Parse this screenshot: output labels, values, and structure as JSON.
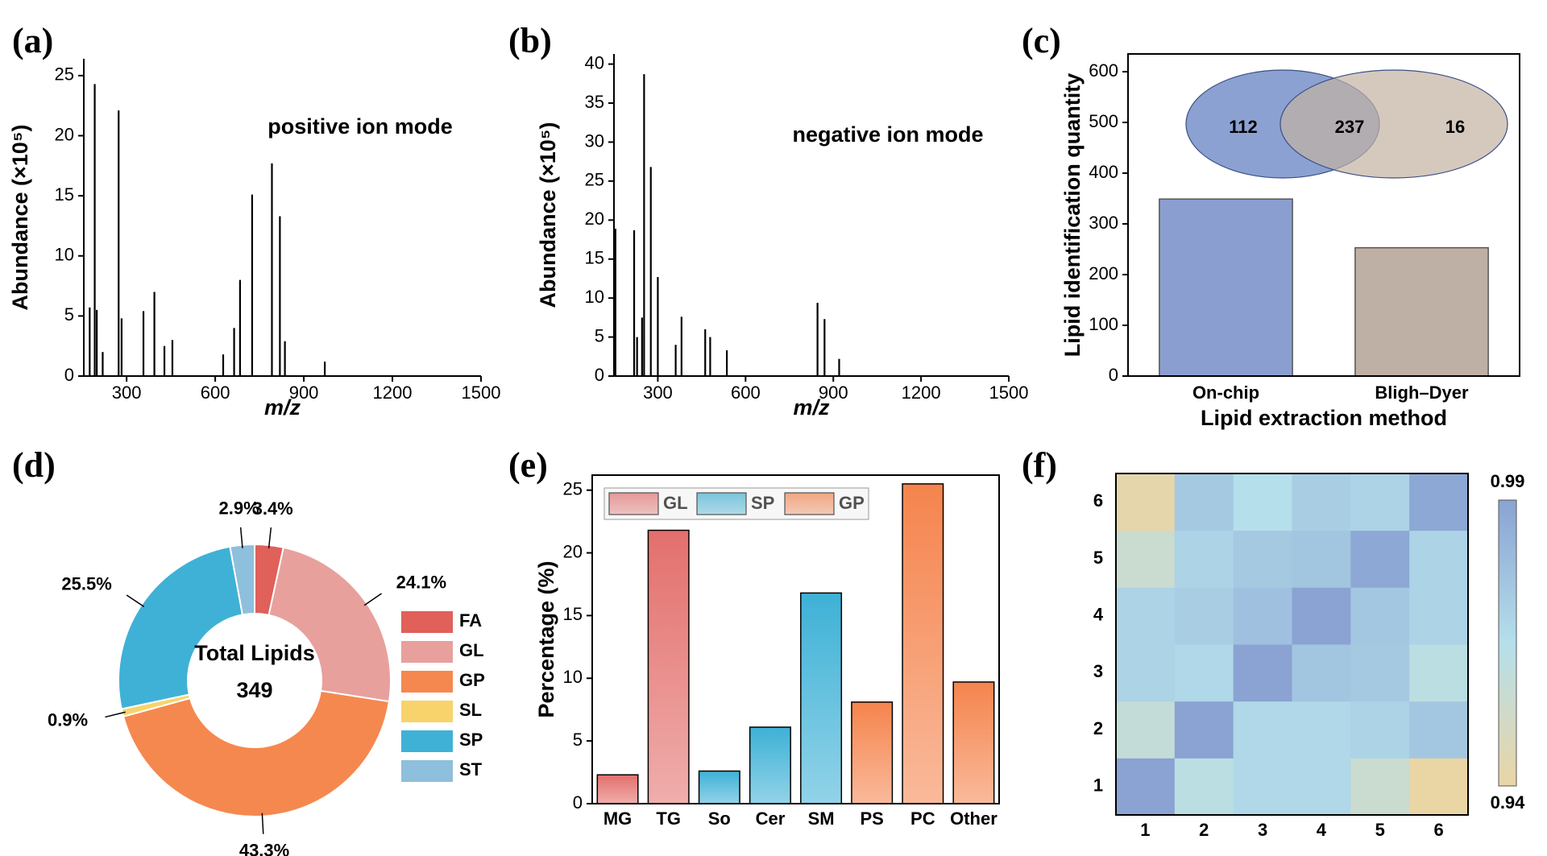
{
  "chart_data": [
    {
      "type": "spectrum",
      "panel": "(a)",
      "annotation": "positive ion mode",
      "x_label": "m/z",
      "y_label": "Abundance (×10⁵)",
      "x": [
        175,
        192,
        199,
        219,
        273,
        283,
        357,
        394,
        428,
        455,
        627,
        664,
        684,
        725,
        792,
        819,
        836,
        971
      ],
      "values": [
        5.7,
        24.3,
        5.5,
        2.0,
        22.1,
        4.8,
        5.4,
        7.0,
        2.5,
        3.0,
        1.8,
        4.0,
        8.0,
        15.1,
        17.7,
        13.3,
        2.9,
        1.2
      ],
      "color": "#000000",
      "xlim": [
        155,
        1500
      ],
      "xticks": [
        300,
        600,
        900,
        1200,
        1500
      ],
      "ylim": [
        0,
        26.4
      ],
      "yticks": [
        0,
        5,
        10,
        15,
        20,
        25
      ]
    },
    {
      "type": "spectrum",
      "panel": "(b)",
      "annotation": "negative ion mode",
      "x_label": "m/z",
      "y_label": "Abundance (×10⁵)",
      "x": [
        155,
        219,
        229,
        246,
        253,
        276,
        300,
        361,
        381,
        462,
        479,
        536,
        846,
        870,
        920
      ],
      "values": [
        18.9,
        18.7,
        5.0,
        7.5,
        38.7,
        26.8,
        12.7,
        4.0,
        7.6,
        6.0,
        5.0,
        3.3,
        9.4,
        7.3,
        2.2
      ],
      "color": "#000000",
      "xlim": [
        150,
        1500
      ],
      "xticks": [
        300,
        600,
        900,
        1200,
        1500
      ],
      "ylim": [
        0,
        41.3
      ],
      "yticks": [
        0,
        5,
        10,
        15,
        20,
        25,
        30,
        35,
        40
      ]
    },
    {
      "type": "bar",
      "panel": "(c)",
      "x_label": "Lipid extraction method",
      "y_label": "Lipid identification quantity",
      "categories": [
        "On-chip",
        "Bligh–Dyer"
      ],
      "values": [
        349,
        253
      ],
      "colors": [
        "#8a9fcf",
        "#bfb0a5"
      ],
      "ylim": [
        0,
        635
      ],
      "yticks": [
        0,
        100,
        200,
        300,
        400,
        500,
        600
      ],
      "venn": {
        "values": [
          112,
          237,
          16
        ],
        "colors": [
          "#7e97cc",
          "#c3b2a3"
        ]
      }
    },
    {
      "type": "pie",
      "panel": "(d)",
      "center_title": "Total Lipids",
      "center_value": 349,
      "categories": [
        "FA",
        "GL",
        "GP",
        "SL",
        "SP",
        "ST"
      ],
      "values": [
        3.4,
        24.1,
        43.3,
        0.9,
        25.5,
        2.9
      ],
      "value_labels": [
        "3.4%",
        "24.1%",
        "43.3%",
        "0.9%",
        "25.5%",
        "2.9%"
      ],
      "colors": [
        "#e0605a",
        "#e8a09d",
        "#f5884f",
        "#f8d36b",
        "#3fb1d6",
        "#8ebfdc"
      ]
    },
    {
      "type": "grouped-bar",
      "panel": "(e)",
      "y_label": "Percentage (%)",
      "categories": [
        "MG",
        "TG",
        "So",
        "Cer",
        "SM",
        "PS",
        "PC",
        "Other"
      ],
      "series": [
        {
          "name": "GL",
          "color": "#e36f6c",
          "values": [
            2.3,
            21.8,
            null,
            null,
            null,
            null,
            null,
            null
          ]
        },
        {
          "name": "SP",
          "color": "#3eb1d6",
          "values": [
            null,
            null,
            2.6,
            6.1,
            16.8,
            null,
            null,
            null
          ]
        },
        {
          "name": "GP",
          "color": "#f5844d",
          "values": [
            null,
            null,
            null,
            null,
            null,
            8.1,
            25.5,
            9.7
          ]
        }
      ],
      "ylim": [
        0,
        26.2
      ],
      "yticks": [
        0,
        5,
        10,
        15,
        20,
        25
      ]
    },
    {
      "type": "heatmap",
      "panel": "(f)",
      "x": [
        "1",
        "2",
        "3",
        "4",
        "5",
        "6"
      ],
      "y": [
        "1",
        "2",
        "3",
        "4",
        "5",
        "6"
      ],
      "values": [
        [
          0.99,
          0.962,
          0.968,
          0.968,
          0.955,
          0.94
        ],
        [
          0.958,
          0.99,
          0.968,
          0.968,
          0.97,
          0.975
        ],
        [
          0.97,
          0.968,
          0.99,
          0.976,
          0.974,
          0.962
        ],
        [
          0.97,
          0.972,
          0.978,
          0.99,
          0.975,
          0.97
        ],
        [
          0.955,
          0.97,
          0.974,
          0.976,
          0.988,
          0.97
        ],
        [
          0.942,
          0.974,
          0.965,
          0.972,
          0.97,
          0.988
        ]
      ],
      "zlim": [
        0.94,
        0.99
      ],
      "zticks": [
        0.94,
        0.99
      ],
      "colormap": [
        "#ead5a5",
        "#b5dfeb",
        "#8aa3d2"
      ]
    }
  ]
}
